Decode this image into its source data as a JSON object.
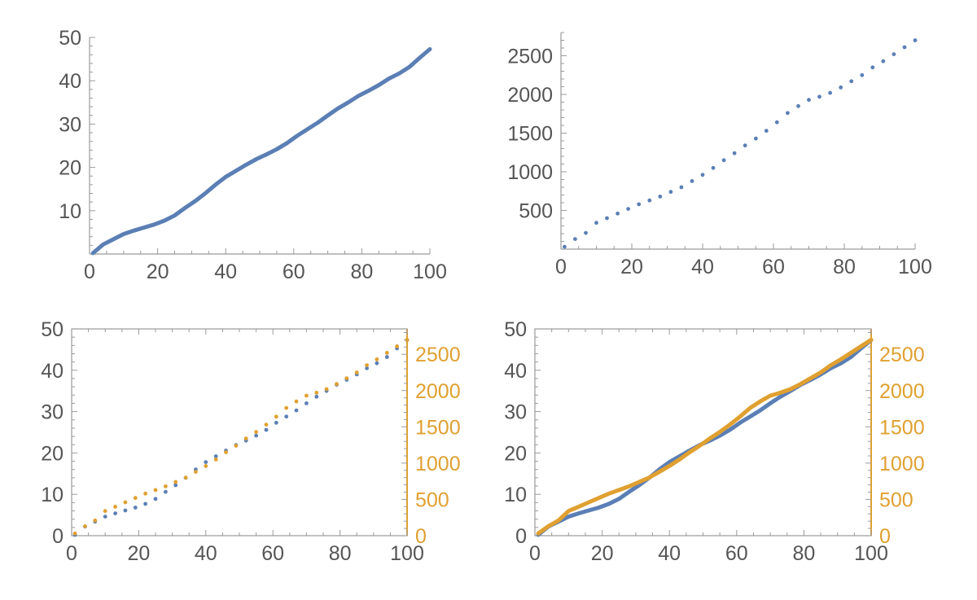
{
  "colors": {
    "blue": "#5b7fb5",
    "orange": "#e0a030",
    "axis": "#9a9a9a",
    "text": "#555555"
  },
  "chart_data": [
    {
      "id": "top-left",
      "type": "line",
      "xlim": [
        0,
        100
      ],
      "ylim": [
        0,
        50
      ],
      "x_ticks": [
        0,
        20,
        40,
        60,
        80,
        100
      ],
      "y_ticks": [
        10,
        20,
        30,
        40,
        50
      ],
      "series": [
        {
          "color": "#5b7fb5",
          "style": "line",
          "x": [
            1,
            4,
            7,
            10,
            13,
            16,
            19,
            22,
            25,
            28,
            31,
            34,
            37,
            40,
            43,
            46,
            49,
            52,
            55,
            58,
            61,
            64,
            67,
            70,
            73,
            76,
            79,
            82,
            85,
            88,
            91,
            94,
            97,
            100
          ],
          "y": [
            0.2,
            2.2,
            3.4,
            4.6,
            5.4,
            6.1,
            6.8,
            7.7,
            8.9,
            10.6,
            12.2,
            14.0,
            16.0,
            17.8,
            19.2,
            20.6,
            21.9,
            23.0,
            24.2,
            25.6,
            27.3,
            28.8,
            30.3,
            32.0,
            33.6,
            35.0,
            36.5,
            37.7,
            39.0,
            40.5,
            41.7,
            43.2,
            45.3,
            47.3
          ]
        }
      ]
    },
    {
      "id": "top-right",
      "type": "scatter",
      "xlim": [
        0,
        100
      ],
      "ylim": [
        0,
        2800
      ],
      "x_ticks": [
        0,
        20,
        40,
        60,
        80,
        100
      ],
      "y_ticks": [
        500,
        1000,
        1500,
        2000,
        2500
      ],
      "series": [
        {
          "color": "#5b7fb5",
          "style": "points",
          "x": [
            1,
            4,
            7,
            10,
            13,
            16,
            19,
            22,
            25,
            28,
            31,
            34,
            37,
            40,
            43,
            46,
            49,
            52,
            55,
            58,
            61,
            64,
            67,
            70,
            73,
            76,
            79,
            82,
            85,
            88,
            91,
            94,
            97,
            100
          ],
          "y": [
            30,
            130,
            210,
            340,
            400,
            460,
            520,
            580,
            630,
            680,
            740,
            800,
            880,
            960,
            1050,
            1150,
            1240,
            1340,
            1430,
            1530,
            1640,
            1760,
            1850,
            1930,
            1970,
            2020,
            2090,
            2170,
            2250,
            2350,
            2430,
            2520,
            2610,
            2700
          ]
        }
      ]
    },
    {
      "id": "bottom-left",
      "type": "scatter",
      "xlim": [
        0,
        100
      ],
      "ylim": [
        0,
        50
      ],
      "ylim_right": [
        0,
        2850
      ],
      "x_ticks": [
        0,
        20,
        40,
        60,
        80,
        100
      ],
      "y_ticks": [
        0,
        10,
        20,
        30,
        40,
        50
      ],
      "y_ticks_right": [
        0,
        500,
        1000,
        1500,
        2000,
        2500
      ],
      "series": [
        {
          "color": "#5b7fb5",
          "style": "points",
          "axis": "left",
          "x": [
            1,
            4,
            7,
            10,
            13,
            16,
            19,
            22,
            25,
            28,
            31,
            34,
            37,
            40,
            43,
            46,
            49,
            52,
            55,
            58,
            61,
            64,
            67,
            70,
            73,
            76,
            79,
            82,
            85,
            88,
            91,
            94,
            97,
            100
          ],
          "y": [
            0.2,
            2.2,
            3.4,
            4.6,
            5.4,
            6.1,
            6.8,
            7.7,
            8.9,
            10.6,
            12.2,
            14.0,
            16.0,
            17.8,
            19.2,
            20.6,
            21.9,
            23.0,
            24.2,
            25.6,
            27.3,
            28.8,
            30.3,
            32.0,
            33.6,
            35.0,
            36.5,
            37.7,
            39.0,
            40.5,
            41.7,
            43.2,
            45.3,
            47.3
          ]
        },
        {
          "color": "#e0a030",
          "style": "points",
          "axis": "right",
          "x": [
            1,
            4,
            7,
            10,
            13,
            16,
            19,
            22,
            25,
            28,
            31,
            34,
            37,
            40,
            43,
            46,
            49,
            52,
            55,
            58,
            61,
            64,
            67,
            70,
            73,
            76,
            79,
            82,
            85,
            88,
            91,
            94,
            97,
            100
          ],
          "y": [
            30,
            130,
            210,
            340,
            400,
            460,
            520,
            580,
            630,
            680,
            740,
            800,
            880,
            960,
            1050,
            1150,
            1240,
            1340,
            1430,
            1530,
            1640,
            1760,
            1850,
            1930,
            1970,
            2020,
            2090,
            2170,
            2250,
            2350,
            2430,
            2520,
            2610,
            2700
          ]
        }
      ]
    },
    {
      "id": "bottom-right",
      "type": "line",
      "xlim": [
        0,
        100
      ],
      "ylim": [
        0,
        50
      ],
      "ylim_right": [
        0,
        2850
      ],
      "x_ticks": [
        0,
        20,
        40,
        60,
        80,
        100
      ],
      "y_ticks": [
        0,
        10,
        20,
        30,
        40,
        50
      ],
      "y_ticks_right": [
        0,
        500,
        1000,
        1500,
        2000,
        2500
      ],
      "series": [
        {
          "color": "#5b7fb5",
          "style": "line",
          "axis": "left",
          "x": [
            1,
            4,
            7,
            10,
            13,
            16,
            19,
            22,
            25,
            28,
            31,
            34,
            37,
            40,
            43,
            46,
            49,
            52,
            55,
            58,
            61,
            64,
            67,
            70,
            73,
            76,
            79,
            82,
            85,
            88,
            91,
            94,
            97,
            100
          ],
          "y": [
            0.2,
            2.2,
            3.4,
            4.6,
            5.4,
            6.1,
            6.8,
            7.7,
            8.9,
            10.6,
            12.2,
            14.0,
            16.0,
            17.8,
            19.2,
            20.6,
            21.9,
            23.0,
            24.2,
            25.6,
            27.3,
            28.8,
            30.3,
            32.0,
            33.6,
            35.0,
            36.5,
            37.7,
            39.0,
            40.5,
            41.7,
            43.2,
            45.3,
            47.3
          ]
        },
        {
          "color": "#e0a030",
          "style": "line",
          "axis": "right",
          "x": [
            1,
            4,
            7,
            10,
            13,
            16,
            19,
            22,
            25,
            28,
            31,
            34,
            37,
            40,
            43,
            46,
            49,
            52,
            55,
            58,
            61,
            64,
            67,
            70,
            73,
            76,
            79,
            82,
            85,
            88,
            91,
            94,
            97,
            100
          ],
          "y": [
            30,
            130,
            210,
            340,
            400,
            460,
            520,
            580,
            630,
            680,
            740,
            800,
            880,
            960,
            1050,
            1150,
            1240,
            1340,
            1430,
            1530,
            1640,
            1760,
            1850,
            1930,
            1970,
            2020,
            2090,
            2170,
            2250,
            2350,
            2430,
            2520,
            2610,
            2700
          ]
        }
      ]
    }
  ]
}
